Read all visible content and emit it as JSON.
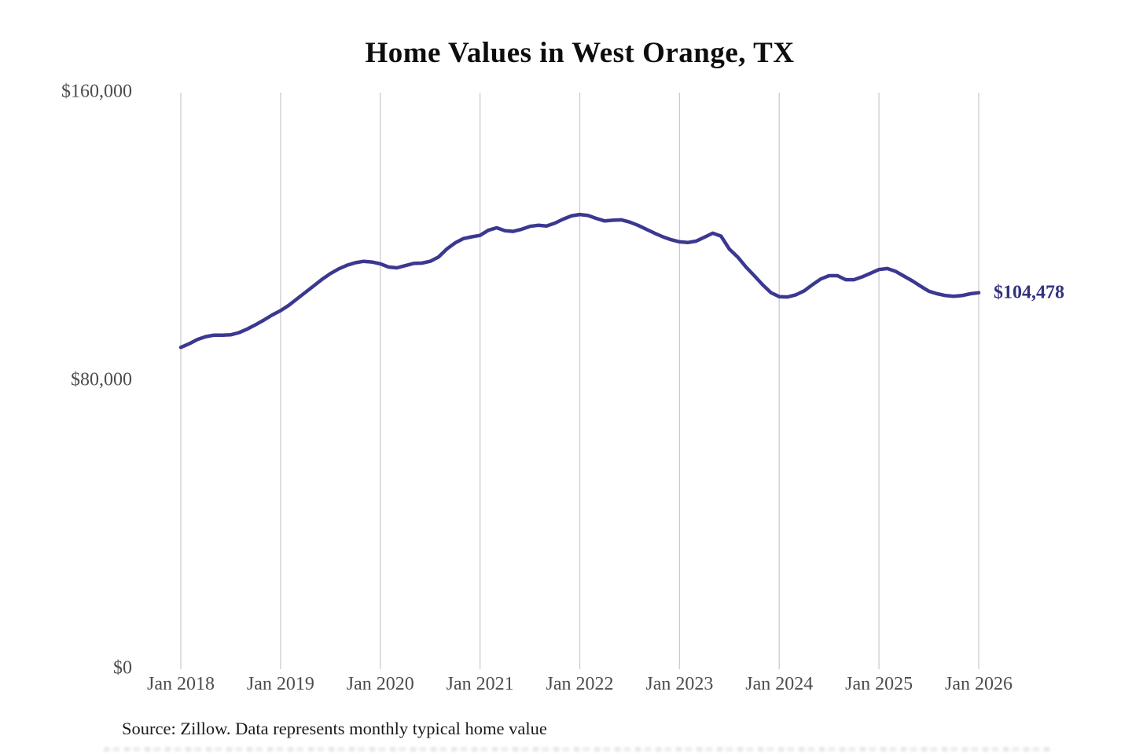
{
  "title": "Home Values in West Orange, TX",
  "source_note": "Source: Zillow. Data represents monthly typical home value",
  "colors": {
    "line": "#3a3890",
    "annotation_text": "#33327f",
    "grid": "#cccccc",
    "axis_text": "#4d4d4d",
    "title_text": "#0d0d0d",
    "source_text": "#1a1a1a",
    "background": "#ffffff"
  },
  "chart_data": {
    "type": "line",
    "title": "Home Values in West Orange, TX",
    "xlabel": "",
    "ylabel": "",
    "ylim": [
      0,
      160000
    ],
    "grid": "vertical-year-gridlines-only",
    "legend_position": "none",
    "x_tick_labels": [
      "Jan 2018",
      "Jan 2019",
      "Jan 2020",
      "Jan 2021",
      "Jan 2022",
      "Jan 2023",
      "Jan 2024",
      "Jan 2025",
      "Jan 2026"
    ],
    "y_ticks": [
      {
        "label": "$160,000",
        "value": 160000
      },
      {
        "label": "$80,000",
        "value": 80000
      },
      {
        "label": "$0",
        "value": 0
      }
    ],
    "annotation": {
      "text": "$104,478",
      "value": 104478
    },
    "series": [
      {
        "name": "Monthly typical home value",
        "frequency": "monthly",
        "start_month": "2018-01",
        "end_month": "2026-01",
        "values": [
          89300,
          90300,
          91500,
          92300,
          92700,
          92700,
          92800,
          93400,
          94400,
          95600,
          96900,
          98300,
          99500,
          101000,
          102800,
          104600,
          106400,
          108200,
          109800,
          111100,
          112100,
          112800,
          113200,
          113000,
          112500,
          111600,
          111400,
          112000,
          112600,
          112700,
          113200,
          114400,
          116600,
          118300,
          119500,
          120000,
          120400,
          121800,
          122500,
          121700,
          121500,
          122100,
          122900,
          123200,
          123000,
          123800,
          124900,
          125800,
          126200,
          125900,
          125100,
          124400,
          124600,
          124700,
          124100,
          123200,
          122100,
          121000,
          120000,
          119200,
          118600,
          118400,
          118800,
          119900,
          121000,
          120200,
          116600,
          114400,
          111600,
          109200,
          106700,
          104500,
          103400,
          103300,
          103900,
          105000,
          106700,
          108300,
          109200,
          109200,
          108100,
          108100,
          108900,
          109900,
          110900,
          111200,
          110400,
          109100,
          107800,
          106300,
          104900,
          104200,
          103700,
          103500,
          103700,
          104200,
          104478
        ]
      }
    ],
    "final_value": 104478
  }
}
